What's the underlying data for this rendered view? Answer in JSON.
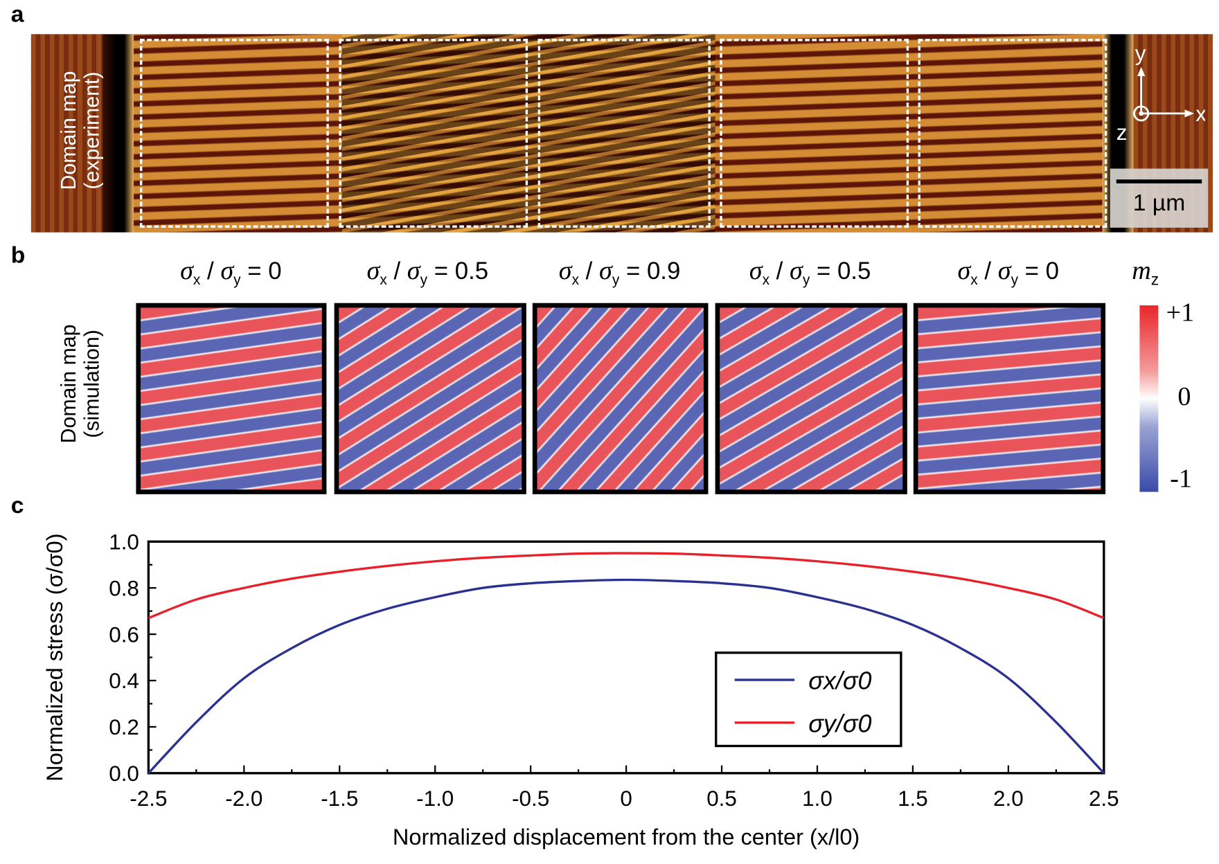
{
  "panels": {
    "a": {
      "letter": "a",
      "ylabel_line1": "Domain map",
      "ylabel_line2": "(experiment)",
      "scale_bar": "1 µm",
      "axes": {
        "x": "x",
        "y": "y",
        "z": "z"
      }
    },
    "b": {
      "letter": "b",
      "ylabel_line1": "Domain map",
      "ylabel_line2": "(simulation)",
      "ratio_prefix": "σ",
      "titles": [
        {
          "value": "0"
        },
        {
          "value": "0.5"
        },
        {
          "value": "0.9"
        },
        {
          "value": "0.5"
        },
        {
          "value": "0"
        }
      ],
      "colorbar": {
        "title": "m",
        "title_sub": "z",
        "max": "+1",
        "mid": "0",
        "min": "-1",
        "colors": {
          "max": "#e8262b",
          "mid": "#ffffff",
          "min": "#3a4aa8"
        }
      }
    },
    "c": {
      "letter": "c"
    }
  },
  "chart_data": {
    "type": "line",
    "xlabel": "Normalized displacement from the center (x/l0)",
    "ylabel": "Normalized stress (σ/σ0)",
    "xlim": [
      -2.5,
      2.5
    ],
    "ylim": [
      0.0,
      1.0
    ],
    "xticks": [
      "-2.5",
      "-2.0",
      "-1.5",
      "-1.0",
      "-0.5",
      "0",
      "0.5",
      "1.0",
      "1.5",
      "2.0",
      "2.5"
    ],
    "yticks": [
      "0.0",
      "0.2",
      "0.4",
      "0.6",
      "0.8",
      "1.0"
    ],
    "grid": false,
    "legend": "center-right",
    "x": [
      -2.5,
      -2.25,
      -2.0,
      -1.75,
      -1.5,
      -1.25,
      -1.0,
      -0.75,
      -0.5,
      -0.25,
      0,
      0.25,
      0.5,
      0.75,
      1.0,
      1.25,
      1.5,
      1.75,
      2.0,
      2.25,
      2.5
    ],
    "series": [
      {
        "name": "σx/σ0",
        "color": "#2b3190",
        "values": [
          0,
          0.22,
          0.41,
          0.54,
          0.64,
          0.71,
          0.76,
          0.8,
          0.82,
          0.83,
          0.835,
          0.83,
          0.82,
          0.8,
          0.76,
          0.71,
          0.64,
          0.54,
          0.41,
          0.22,
          0
        ]
      },
      {
        "name": "σy/σ0",
        "color": "#e8202a",
        "values": [
          0.67,
          0.75,
          0.8,
          0.84,
          0.87,
          0.895,
          0.915,
          0.93,
          0.94,
          0.948,
          0.95,
          0.948,
          0.94,
          0.93,
          0.915,
          0.895,
          0.87,
          0.84,
          0.8,
          0.75,
          0.67
        ]
      }
    ]
  }
}
